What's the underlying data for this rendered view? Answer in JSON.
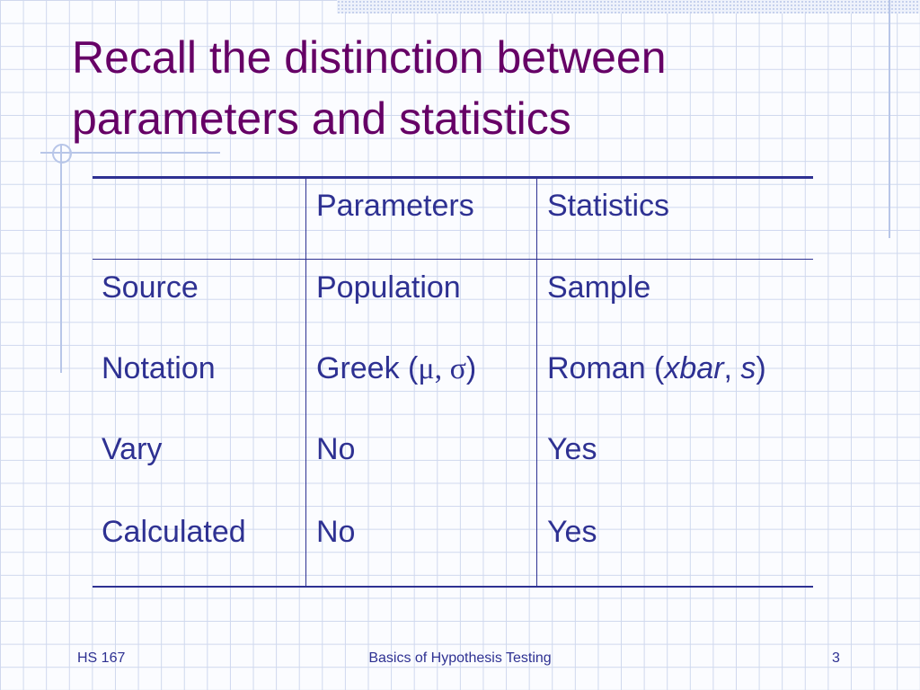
{
  "title": [
    "Recall the distinction between",
    "parameters and statistics"
  ],
  "table": {
    "header": [
      "Parameters",
      "Statistics"
    ],
    "rows": [
      [
        "Source",
        "Population",
        "Sample"
      ],
      [
        "Notation",
        [
          "Greek (",
          "μ, σ",
          ")"
        ],
        [
          "Roman (",
          "xbar",
          ", ",
          "s",
          ")"
        ]
      ],
      [
        "Vary",
        "No",
        "Yes"
      ],
      [
        "Calculated",
        "No",
        "Yes"
      ]
    ]
  },
  "footer": {
    "left": "HS 167",
    "center": "Basics of Hypothesis Testing",
    "page": "3"
  }
}
